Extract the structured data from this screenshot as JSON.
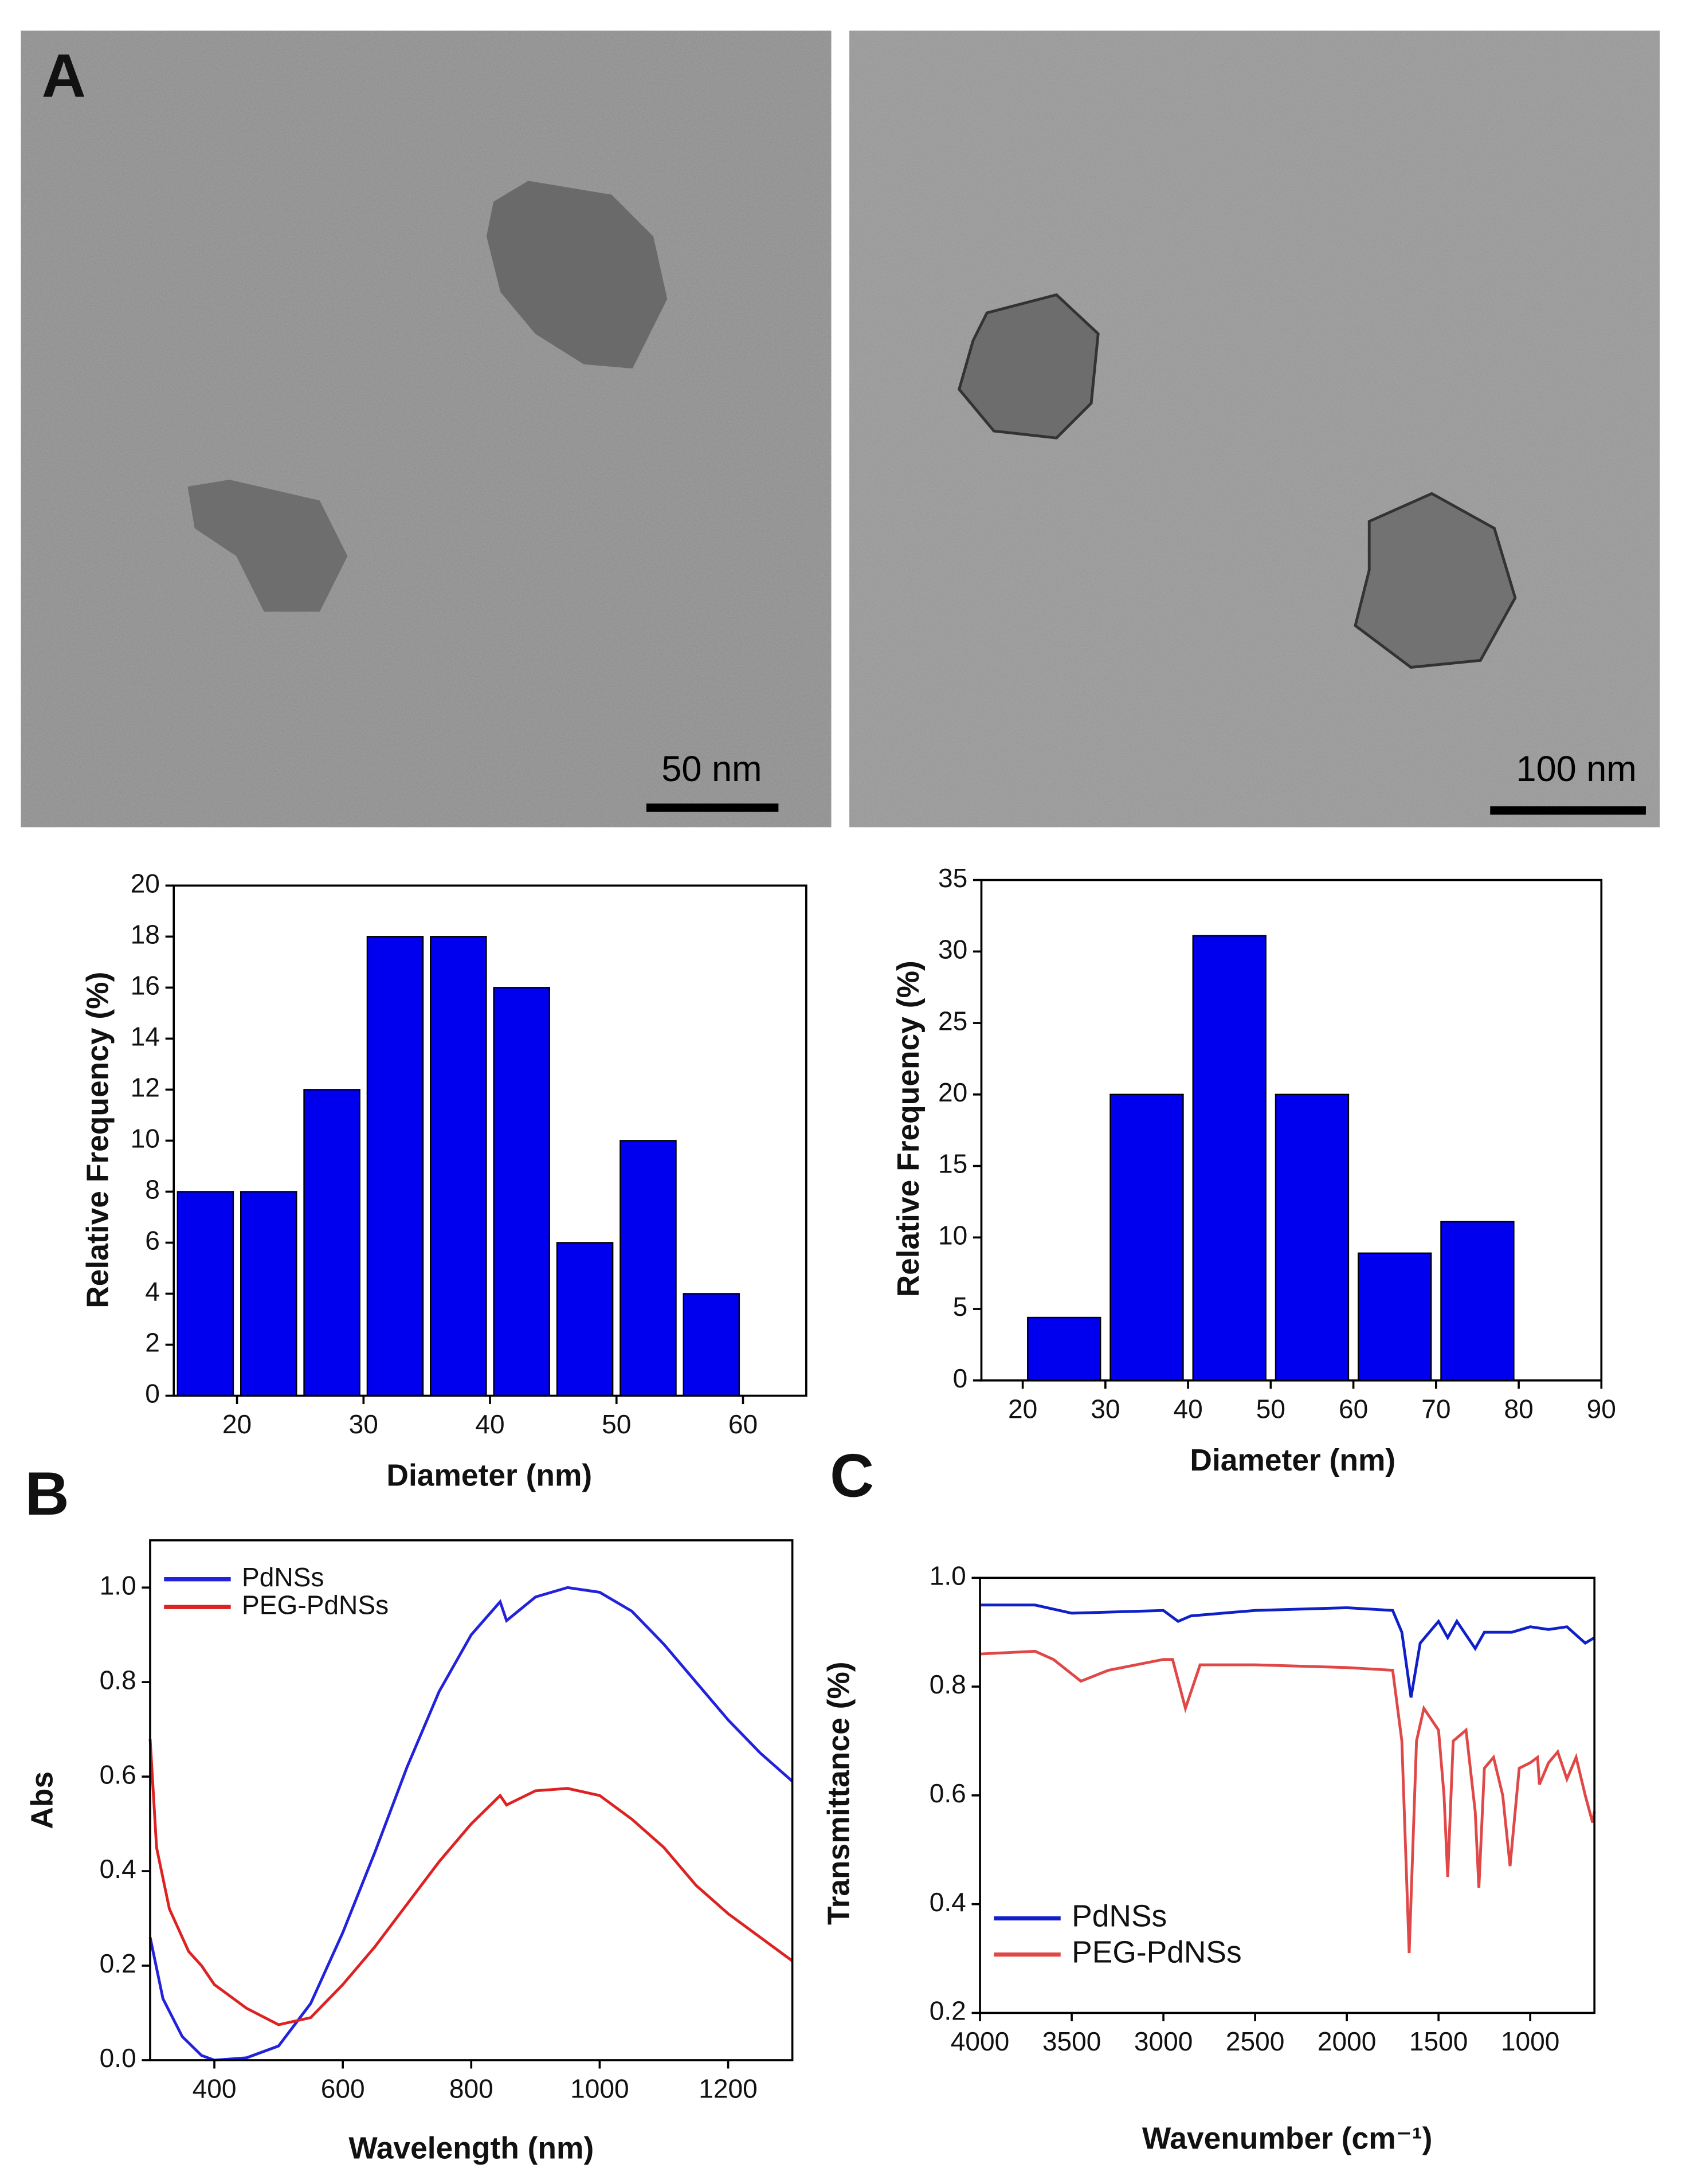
{
  "panel_labels": [
    "A",
    "B",
    "C"
  ],
  "micrographs": [
    {
      "scale_bar": "50 nm"
    },
    {
      "scale_bar": "100 nm"
    }
  ],
  "chart_data": [
    {
      "type": "histogram",
      "bins": [
        15,
        20,
        25,
        30,
        35,
        40,
        45,
        50,
        55,
        60
      ],
      "values": [
        8,
        8,
        12,
        18,
        18,
        16,
        6,
        10,
        4
      ],
      "color": "#0000ee",
      "xlabel": "Diameter (nm)",
      "ylabel": "Relative Frequency (%)",
      "xlim": [
        15,
        65
      ],
      "xticks": [
        20,
        30,
        40,
        50,
        60
      ],
      "ylim": [
        0,
        20
      ],
      "yticks": [
        0,
        2,
        4,
        6,
        8,
        10,
        12,
        14,
        16,
        18,
        20
      ]
    },
    {
      "type": "histogram",
      "bins": [
        20,
        30,
        40,
        50,
        60,
        70,
        80
      ],
      "values": [
        4.4,
        20,
        31.1,
        20,
        8.9,
        11.1
      ],
      "color": "#0000ee",
      "xlabel": "Diameter (nm)",
      "ylabel": "Relative Frequency (%)",
      "xlim": [
        15,
        90
      ],
      "xticks": [
        20,
        30,
        40,
        50,
        60,
        70,
        80,
        90
      ],
      "ylim": [
        0,
        35
      ],
      "yticks": [
        0,
        5,
        10,
        15,
        20,
        25,
        30,
        35
      ]
    },
    {
      "type": "line",
      "xlabel": "Wavelength (nm)",
      "ylabel": "Abs",
      "legend": "top-left",
      "xlim": [
        300,
        1300
      ],
      "xticks": [
        400,
        600,
        800,
        1000,
        1200
      ],
      "ylim": [
        0,
        1.1
      ],
      "yticks": [
        {
          "value": 0,
          "label": "0.0"
        },
        0.2,
        0.4,
        0.6,
        0.8,
        {
          "value": 1,
          "label": "1.0"
        }
      ],
      "series": [
        {
          "name": "PdNSs",
          "color": "#2222dd",
          "x": [
            300,
            320,
            350,
            380,
            400,
            450,
            500,
            550,
            600,
            650,
            700,
            750,
            800,
            845,
            855,
            900,
            950,
            1000,
            1050,
            1100,
            1150,
            1200,
            1250,
            1300
          ],
          "values": [
            0.26,
            0.13,
            0.05,
            0.01,
            0.0,
            0.005,
            0.03,
            0.12,
            0.27,
            0.44,
            0.62,
            0.78,
            0.9,
            0.97,
            0.93,
            0.98,
            1.0,
            0.99,
            0.95,
            0.88,
            0.8,
            0.72,
            0.65,
            0.59
          ]
        },
        {
          "name": "PEG-PdNSs",
          "color": "#dd2222",
          "x": [
            300,
            310,
            330,
            360,
            380,
            400,
            450,
            500,
            550,
            600,
            650,
            700,
            750,
            800,
            845,
            855,
            900,
            950,
            1000,
            1050,
            1100,
            1150,
            1200,
            1250,
            1300
          ],
          "values": [
            0.68,
            0.45,
            0.32,
            0.23,
            0.2,
            0.16,
            0.11,
            0.075,
            0.09,
            0.16,
            0.24,
            0.33,
            0.42,
            0.5,
            0.56,
            0.54,
            0.57,
            0.575,
            0.56,
            0.51,
            0.45,
            0.37,
            0.31,
            0.26,
            0.21
          ]
        }
      ]
    },
    {
      "type": "line",
      "xlabel": "Wavenumber (cm⁻¹)",
      "ylabel": "Transmittance (%)",
      "legend": "bottom-left",
      "xlim": [
        4000,
        650
      ],
      "xticks": [
        4000,
        3500,
        3000,
        2500,
        2000,
        1500,
        1000
      ],
      "ylim": [
        0.2,
        1.0
      ],
      "yticks": [
        0.2,
        0.4,
        0.6,
        0.8,
        {
          "value": 1,
          "label": "1.0"
        }
      ],
      "series": [
        {
          "name": "PdNSs",
          "color": "#1020c8",
          "x": [
            4000,
            3700,
            3500,
            3000,
            2920,
            2850,
            2500,
            2000,
            1750,
            1700,
            1650,
            1600,
            1500,
            1450,
            1400,
            1300,
            1250,
            1100,
            1000,
            900,
            800,
            700,
            650
          ],
          "values": [
            0.95,
            0.95,
            0.935,
            0.94,
            0.92,
            0.93,
            0.94,
            0.945,
            0.94,
            0.9,
            0.78,
            0.88,
            0.92,
            0.89,
            0.92,
            0.87,
            0.9,
            0.9,
            0.91,
            0.905,
            0.91,
            0.88,
            0.89
          ]
        },
        {
          "name": "PEG-PdNSs",
          "color": "#e04848",
          "x": [
            4000,
            3700,
            3600,
            3450,
            3300,
            3000,
            2950,
            2880,
            2800,
            2500,
            2000,
            1750,
            1700,
            1660,
            1620,
            1580,
            1500,
            1470,
            1450,
            1420,
            1350,
            1300,
            1280,
            1250,
            1200,
            1150,
            1110,
            1060,
            1000,
            960,
            950,
            900,
            850,
            800,
            750,
            700,
            660,
            650
          ],
          "values": [
            0.86,
            0.865,
            0.85,
            0.81,
            0.83,
            0.85,
            0.85,
            0.76,
            0.84,
            0.84,
            0.835,
            0.83,
            0.7,
            0.31,
            0.7,
            0.76,
            0.72,
            0.6,
            0.45,
            0.7,
            0.72,
            0.57,
            0.43,
            0.65,
            0.67,
            0.6,
            0.47,
            0.65,
            0.66,
            0.67,
            0.62,
            0.66,
            0.68,
            0.63,
            0.67,
            0.6,
            0.55,
            0.57
          ]
        }
      ]
    }
  ]
}
